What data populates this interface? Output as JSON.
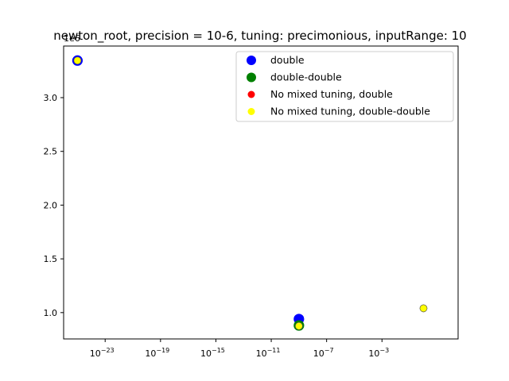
{
  "chart_data": {
    "type": "scatter",
    "title": "newton_root, precision = 10-6, tuning: precimonious, inputRange: 10",
    "xlabel": "",
    "ylabel": "",
    "x_scale": "log",
    "xlim_exp": [
      -26.0,
      2.5
    ],
    "ylim": [
      0.755,
      3.48
    ],
    "y_offset_label": "1e6",
    "x_ticks": [
      {
        "exp": -23,
        "base": "10",
        "sup": "−23"
      },
      {
        "exp": -19,
        "base": "10",
        "sup": "−19"
      },
      {
        "exp": -15,
        "base": "10",
        "sup": "−15"
      },
      {
        "exp": -11,
        "base": "10",
        "sup": "−11"
      },
      {
        "exp": -7,
        "base": "10",
        "sup": "−7"
      },
      {
        "exp": -3,
        "base": "10",
        "sup": "−3"
      }
    ],
    "y_ticks": [
      {
        "value": 1.0,
        "label": "1.0"
      },
      {
        "value": 1.5,
        "label": "1.5"
      },
      {
        "value": 2.0,
        "label": "2.0"
      },
      {
        "value": 2.5,
        "label": "2.5"
      },
      {
        "value": 3.0,
        "label": "3.0"
      }
    ],
    "legend_position": "top-right",
    "grid": false,
    "series": [
      {
        "name": "double",
        "color": "#0000ff",
        "marker": "large",
        "points": [
          {
            "x_exp": -25,
            "y": 3.345
          },
          {
            "x_exp": -9,
            "y": 0.94
          }
        ]
      },
      {
        "name": "double-double",
        "color": "#008000",
        "marker": "large",
        "points": [
          {
            "x_exp": -9,
            "y": 0.88
          }
        ]
      },
      {
        "name": "No mixed tuning, double",
        "color": "#ff0000",
        "marker": "small",
        "points": [
          {
            "x_exp": -25,
            "y": 3.345
          },
          {
            "x_exp": -9,
            "y": 0.875
          },
          {
            "x_exp": 0,
            "y": 1.04
          }
        ]
      },
      {
        "name": "No mixed tuning, double-double",
        "color": "#ffff00",
        "marker": "small",
        "points": [
          {
            "x_exp": -25,
            "y": 3.345
          },
          {
            "x_exp": -9,
            "y": 0.875
          },
          {
            "x_exp": 0,
            "y": 1.04
          }
        ]
      }
    ]
  }
}
